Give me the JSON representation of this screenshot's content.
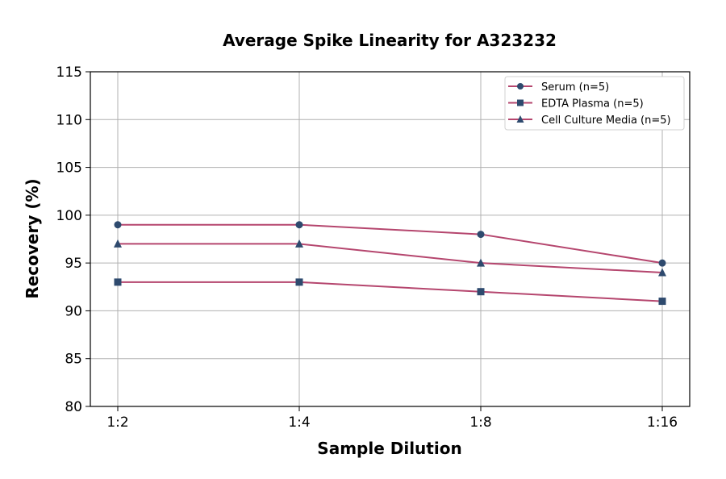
{
  "chart_data": {
    "type": "line",
    "title": "Average Spike Linearity for A323232",
    "xlabel": "Sample Dilution",
    "ylabel": "Recovery (%)",
    "categories": [
      "1:2",
      "1:4",
      "1:8",
      "1:16"
    ],
    "ylim": [
      80,
      115
    ],
    "yticks": [
      80,
      85,
      90,
      95,
      100,
      105,
      110,
      115
    ],
    "grid": true,
    "legend_position": "top-right",
    "line_color": "#b5466e",
    "marker_color": "#2e4a6e",
    "series": [
      {
        "name": "Serum (n=5)",
        "marker": "circle",
        "values": [
          99,
          99,
          98,
          95
        ]
      },
      {
        "name": "EDTA Plasma (n=5)",
        "marker": "square",
        "values": [
          93,
          93,
          92,
          91
        ]
      },
      {
        "name": "Cell Culture Media (n=5)",
        "marker": "triangle",
        "values": [
          97,
          97,
          95,
          94
        ]
      }
    ]
  }
}
